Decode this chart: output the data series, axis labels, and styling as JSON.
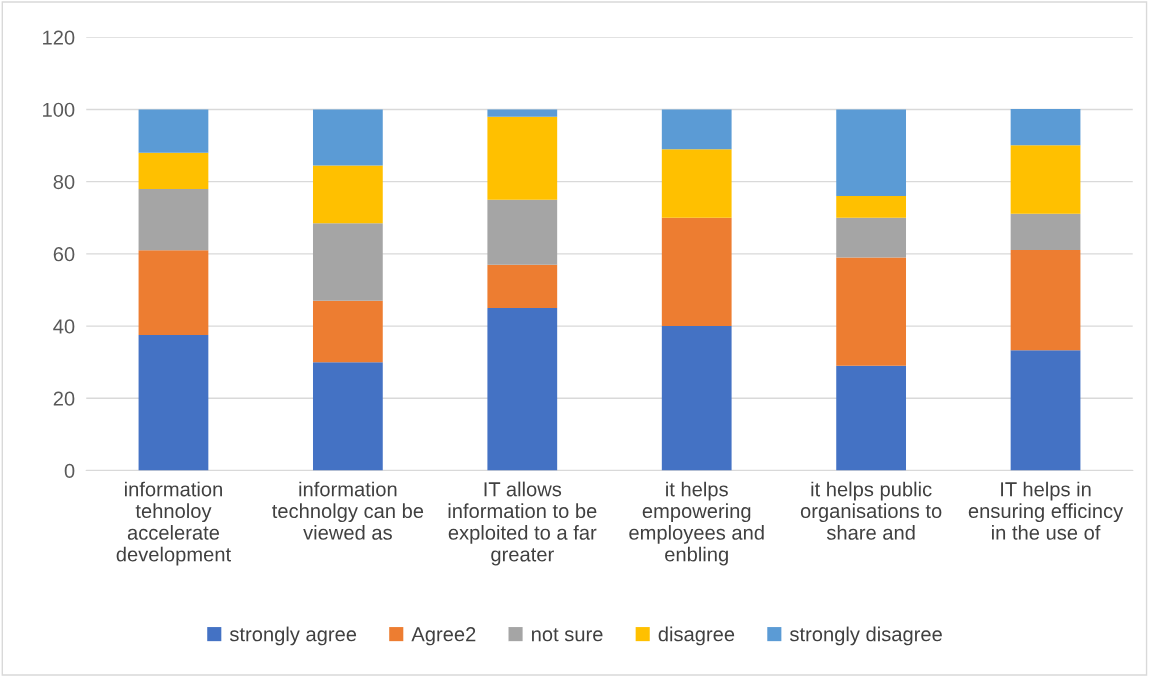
{
  "chart_data": {
    "type": "bar",
    "stacked": true,
    "categories": [
      "information\ntehnoloy\naccelerate\ndevelopment",
      "information\ntechnolgy can be\nviewed as",
      "IT allows\ninformation to be\nexploited to a far\ngreater",
      "it helps\nempowering\nemployees and\nenbling",
      "it helps public\norganisations to\nshare and",
      "IT helps in\nensuring efficincy\nin the use of"
    ],
    "series": [
      {
        "name": "strongly agree",
        "color": "#4472c4",
        "values": [
          37.5,
          30,
          45,
          40,
          29,
          33.3
        ]
      },
      {
        "name": "Agree2",
        "color": "#ed7d31",
        "values": [
          23.5,
          17,
          12,
          30,
          30,
          27.8
        ]
      },
      {
        "name": "not sure",
        "color": "#a5a5a5",
        "values": [
          17,
          21.5,
          18,
          0,
          11,
          10
        ]
      },
      {
        "name": "disagree",
        "color": "#ffc000",
        "values": [
          10,
          16,
          23,
          19,
          6,
          19
        ]
      },
      {
        "name": "strongly disagree",
        "color": "#5b9bd5",
        "values": [
          12,
          15.5,
          2,
          11,
          24,
          10
        ]
      }
    ],
    "ylim": [
      0,
      120
    ],
    "yticks": [
      0,
      20,
      40,
      60,
      80,
      100,
      120
    ],
    "grid": "y",
    "legend": "bottom"
  }
}
